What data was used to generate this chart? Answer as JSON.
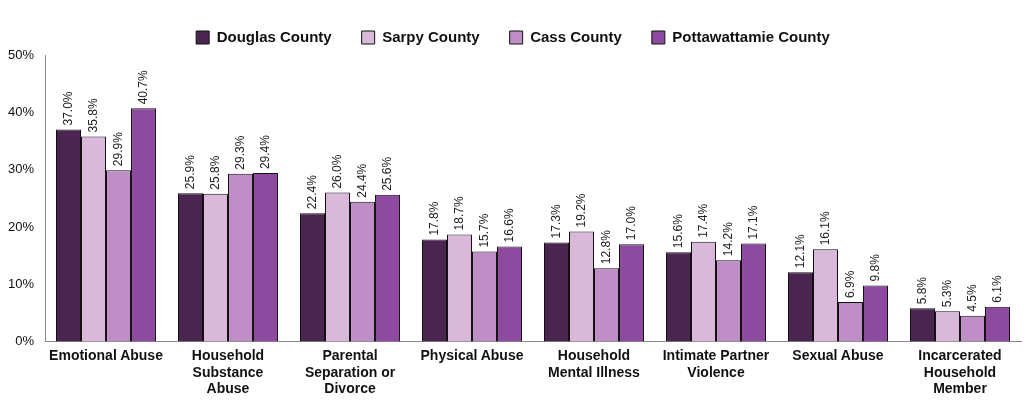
{
  "chart_data": {
    "type": "bar",
    "categories": [
      "Emotional Abuse",
      "Household Substance Abuse",
      "Parental Separation or Divorce",
      "Physical Abuse",
      "Household Mental Illness",
      "Intimate Partner Violence",
      "Sexual Abuse",
      "Incarcerated Household Member"
    ],
    "series": [
      {
        "name": "Douglas County",
        "color": "#4a2550",
        "values": [
          37.0,
          25.9,
          22.4,
          17.8,
          17.3,
          15.6,
          12.1,
          5.8
        ],
        "value_labels": [
          "37.0%",
          "25.9%",
          "22.4%",
          "17.8%",
          "17.3%",
          "15.6%",
          "12.1%",
          "5.8%"
        ]
      },
      {
        "name": "Sarpy County",
        "color": "#d9b8da",
        "values": [
          35.8,
          25.8,
          26.0,
          18.7,
          19.2,
          17.4,
          16.1,
          5.3
        ],
        "value_labels": [
          "35.8%",
          "25.8%",
          "26.0%",
          "18.7%",
          "19.2%",
          "17.4%",
          "16.1%",
          "5.3%"
        ]
      },
      {
        "name": "Cass County",
        "color": "#c08ec6",
        "values": [
          29.9,
          29.3,
          24.4,
          15.7,
          12.8,
          14.2,
          6.9,
          4.5
        ],
        "value_labels": [
          "29.9%",
          "29.3%",
          "24.4%",
          "15.7%",
          "12.8%",
          "14.2%",
          "6.9%",
          "4.5%"
        ]
      },
      {
        "name": "Pottawattamie County",
        "color": "#8e4a9e",
        "values": [
          40.7,
          29.4,
          25.6,
          16.6,
          17.0,
          17.1,
          9.8,
          6.1
        ],
        "value_labels": [
          "40.7%",
          "29.4%",
          "25.6%",
          "16.6%",
          "17.0%",
          "17.1%",
          "9.8%",
          "6.1%"
        ]
      }
    ],
    "ylim": [
      0,
      50
    ],
    "yticks": [
      {
        "value": 0,
        "label": "0%"
      },
      {
        "value": 10,
        "label": "10%"
      },
      {
        "value": 20,
        "label": "20%"
      },
      {
        "value": 30,
        "label": "30%"
      },
      {
        "value": 40,
        "label": "40%"
      },
      {
        "value": 50,
        "label": "50%"
      }
    ],
    "grid": false,
    "legend": "top"
  }
}
